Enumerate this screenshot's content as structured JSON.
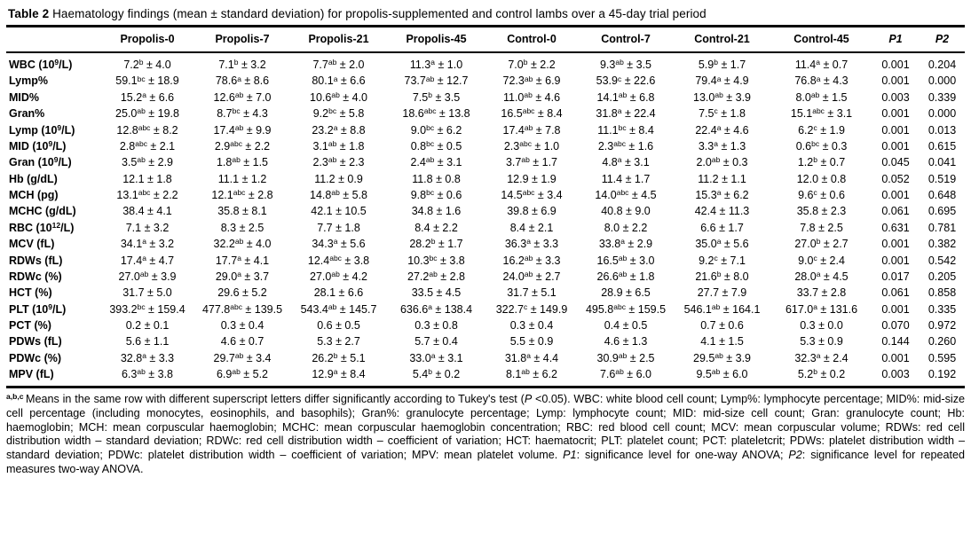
{
  "title": {
    "label": "Table 2",
    "caption": " Haematology findings (mean ± standard deviation) for propolis-supplemented and control lambs over a 45-day trial period"
  },
  "table": {
    "columns": [
      "",
      "Propolis-0",
      "Propolis-7",
      "Propolis-21",
      "Propolis-45",
      "Control-0",
      "Control-7",
      "Control-21",
      "Control-45",
      "[P1]",
      "[P2]"
    ],
    "rows": [
      {
        "label": "WBC (10{9}/L)",
        "values": [
          "7.2{b} ± 4.0",
          "7.1{b} ± 3.2",
          "7.7{ab} ± 2.0",
          "11.3{a} ± 1.0",
          "7.0{b} ± 2.2",
          "9.3{ab} ± 3.5",
          "5.9{b} ± 1.7",
          "11.4{a} ± 0.7"
        ],
        "p1": "0.001",
        "p2": "0.204"
      },
      {
        "label": "Lymp%",
        "values": [
          "59.1{bc} ± 18.9",
          "78.6{a} ± 8.6",
          "80.1{a} ± 6.6",
          "73.7{ab} ± 12.7",
          "72.3{ab} ± 6.9",
          "53.9{c} ± 22.6",
          "79.4{a} ± 4.9",
          "76.8{a} ± 4.3"
        ],
        "p1": "0.001",
        "p2": "0.000"
      },
      {
        "label": "MID%",
        "values": [
          "15.2{a} ± 6.6",
          "12.6{ab} ± 7.0",
          "10.6{ab} ± 4.0",
          "7.5{b} ± 3.5",
          "11.0{ab} ± 4.6",
          "14.1{ab} ± 6.8",
          "13.0{ab} ± 3.9",
          "8.0{ab} ± 1.5"
        ],
        "p1": "0.003",
        "p2": "0.339"
      },
      {
        "label": "Gran%",
        "values": [
          "25.0{ab} ± 19.8",
          "8.7{bc} ± 4.3",
          "9.2{bc} ± 5.8",
          "18.6{abc} ± 13.8",
          "16.5{abc} ± 8.4",
          "31.8{a} ± 22.4",
          "7.5{c} ± 1.8",
          "15.1{abc} ± 3.1"
        ],
        "p1": "0.001",
        "p2": "0.000"
      },
      {
        "label": "Lymp (10{9}/L)",
        "values": [
          "12.8{abc} ± 8.2",
          "17.4{ab} ± 9.9",
          "23.2{a} ± 8.8",
          "9.0{bc} ± 6.2",
          "17.4{ab} ± 7.8",
          "11.1{bc} ± 8.4",
          "22.4{a} ± 4.6",
          "6.2{c} ± 1.9"
        ],
        "p1": "0.001",
        "p2": "0.013"
      },
      {
        "label": "MID (10{9}/L)",
        "values": [
          "2.8{abc} ± 2.1",
          "2.9{abc} ± 2.2",
          "3.1{ab} ± 1.8",
          "0.8{bc} ± 0.5",
          "2.3{abc} ± 1.0",
          "2.3{abc} ± 1.6",
          "3.3{a} ± 1.3",
          "0.6{bc} ± 0.3"
        ],
        "p1": "0.001",
        "p2": "0.615"
      },
      {
        "label": "Gran (10{9}/L)",
        "values": [
          "3.5{ab} ± 2.9",
          "1.8{ab} ± 1.5",
          "2.3{ab} ± 2.3",
          "2.4{ab} ± 3.1",
          "3.7{ab} ± 1.7",
          "4.8{a} ± 3.1",
          "2.0{ab} ± 0.3",
          "1.2{b} ± 0.7"
        ],
        "p1": "0.045",
        "p2": "0.041"
      },
      {
        "label": "Hb (g/dL)",
        "values": [
          "12.1 ± 1.8",
          "11.1 ± 1.2",
          "11.2 ± 0.9",
          "11.8 ± 0.8",
          "12.9 ± 1.9",
          "11.4 ± 1.7",
          "11.2 ± 1.1",
          "12.0 ± 0.8"
        ],
        "p1": "0.052",
        "p2": "0.519"
      },
      {
        "label": "MCH (pg)",
        "values": [
          "13.1{abc} ± 2.2",
          "12.1{abc} ± 2.8",
          "14.8{ab} ± 5.8",
          "9.8{bc} ± 0.6",
          "14.5{abc} ± 3.4",
          "14.0{abc} ± 4.5",
          "15.3{a} ± 6.2",
          "9.6{c} ± 0.6"
        ],
        "p1": "0.001",
        "p2": "0.648"
      },
      {
        "label": "MCHC (g/dL)",
        "values": [
          "38.4 ± 4.1",
          "35.8 ± 8.1",
          "42.1 ± 10.5",
          "34.8 ± 1.6",
          "39.8 ± 6.9",
          "40.8 ± 9.0",
          "42.4 ± 11.3",
          "35.8 ± 2.3"
        ],
        "p1": "0.061",
        "p2": "0.695"
      },
      {
        "label": "RBC (10{12}/L)",
        "values": [
          "7.1 ± 3.2",
          "8.3 ± 2.5",
          "7.7 ± 1.8",
          "8.4 ± 2.2",
          "8.4 ± 2.1",
          "8.0 ± 2.2",
          "6.6 ± 1.7",
          "7.8 ± 2.5"
        ],
        "p1": "0.631",
        "p2": "0.781"
      },
      {
        "label": "MCV (fL)",
        "values": [
          "34.1{a} ± 3.2",
          "32.2{ab} ± 4.0",
          "34.3{a} ± 5.6",
          "28.2{b} ± 1.7",
          "36.3{a} ± 3.3",
          "33.8{a} ± 2.9",
          "35.0{a} ± 5.6",
          "27.0{b} ± 2.7"
        ],
        "p1": "0.001",
        "p2": "0.382"
      },
      {
        "label": "RDWs (fL)",
        "values": [
          "17.4{a} ± 4.7",
          "17.7{a} ± 4.1",
          "12.4{abc} ± 3.8",
          "10.3{bc} ± 3.8",
          "16.2{ab} ± 3.3",
          "16.5{ab} ± 3.0",
          "9.2{c} ± 7.1",
          "9.0{c} ± 2.4"
        ],
        "p1": "0.001",
        "p2": "0.542"
      },
      {
        "label": "RDWc (%)",
        "values": [
          "27.0{ab} ± 3.9",
          "29.0{a} ± 3.7",
          "27.0{ab} ± 4.2",
          "27.2{ab} ± 2.8",
          "24.0{ab} ± 2.7",
          "26.6{ab} ± 1.8",
          "21.6{b} ± 8.0",
          "28.0{a} ± 4.5"
        ],
        "p1": "0.017",
        "p2": "0.205"
      },
      {
        "label": "HCT (%)",
        "values": [
          "31.7 ± 5.0",
          "29.6 ± 5.2",
          "28.1 ± 6.6",
          "33.5 ± 4.5",
          "31.7 ± 5.1",
          "28.9 ± 6.5",
          "27.7 ± 7.9",
          "33.7 ± 2.8"
        ],
        "p1": "0.061",
        "p2": "0.858"
      },
      {
        "label": "PLT (10{9}/L)",
        "values": [
          "393.2{bc} ± 159.4",
          "477.8{abc} ± 139.5",
          "543.4{ab} ± 145.7",
          "636.6{a} ± 138.4",
          "322.7{c} ± 149.9",
          "495.8{abc} ± 159.5",
          "546.1{ab} ± 164.1",
          "617.0{a} ± 131.6"
        ],
        "p1": "0.001",
        "p2": "0.335"
      },
      {
        "label": "PCT (%)",
        "values": [
          "0.2 ± 0.1",
          "0.3 ± 0.4",
          "0.6 ± 0.5",
          "0.3 ± 0.8",
          "0.3 ± 0.4",
          "0.4 ± 0.5",
          "0.7 ± 0.6",
          "0.3 ± 0.0"
        ],
        "p1": "0.070",
        "p2": "0.972"
      },
      {
        "label": "PDWs (fL)",
        "values": [
          "5.6 ± 1.1",
          "4.6 ± 0.7",
          "5.3 ± 2.7",
          "5.7 ± 0.4",
          "5.5 ± 0.9",
          "4.6 ± 1.3",
          "4.1 ± 1.5",
          "5.3 ± 0.9"
        ],
        "p1": "0.144",
        "p2": "0.260"
      },
      {
        "label": "PDWc (%)",
        "values": [
          "32.8{a} ± 3.3",
          "29.7{ab} ± 3.4",
          "26.2{b} ± 5.1",
          "33.0{a} ± 3.1",
          "31.8{a} ± 4.4",
          "30.9{ab} ± 2.5",
          "29.5{ab} ± 3.9",
          "32.3{a} ± 2.4"
        ],
        "p1": "0.001",
        "p2": "0.595"
      },
      {
        "label": "MPV (fL)",
        "values": [
          "6.3{ab} ± 3.8",
          "6.9{ab} ± 5.2",
          "12.9{a} ± 8.4",
          "5.4{b} ± 0.2",
          "8.1{ab} ± 6.2",
          "7.6{ab} ± 6.0",
          "9.5{ab} ± 6.0",
          "5.2{b} ± 0.2"
        ],
        "p1": "0.003",
        "p2": "0.192"
      }
    ]
  },
  "footnote": "{a,b,c} Means in the same row with different superscript letters differ significantly according to Tukey's test ([P] <0.05). WBC: white blood cell count; Lymp%: lymphocyte percentage; MID%: mid-size cell percentage (including monocytes, eosinophils, and basophils); Gran%: granulocyte percentage; Lymp: lymphocyte count; MID: mid-size cell count; Gran: granulocyte count; Hb: haemoglobin; MCH: mean corpuscular haemoglobin; MCHC: mean corpuscular haemoglobin concentration; RBC: red blood cell count; MCV: mean corpuscular volume; RDWs: red cell distribution width – standard deviation; RDWc: red cell distribution width – coefficient of variation; HCT: haematocrit; PLT: platelet count; PCT: plateletcrit; PDWs: platelet distribution width – standard deviation; PDWc: platelet distribution width – coefficient of variation; MPV: mean platelet volume. [P1]: significance level for one-way ANOVA; [P2]: significance level for repeated measures two-way ANOVA."
}
